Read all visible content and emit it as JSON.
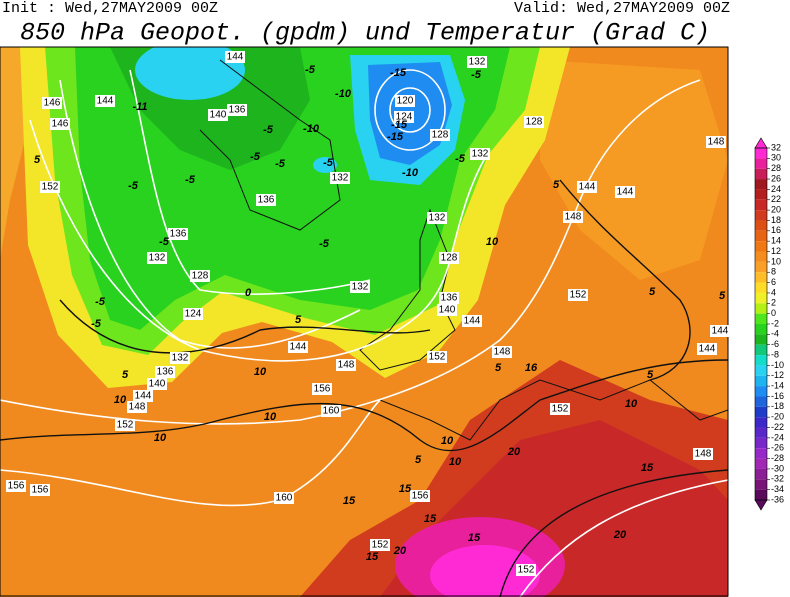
{
  "header": {
    "init": "Init : Wed,27MAY2009 00Z",
    "valid": "Valid: Wed,27MAY2009 00Z",
    "title": "850 hPa Geopot. (gpdm) und Temperatur (Grad C)"
  },
  "colorbar": {
    "ticks": [
      32,
      30,
      28,
      26,
      24,
      22,
      20,
      18,
      16,
      14,
      12,
      10,
      8,
      6,
      4,
      2,
      0,
      -2,
      -4,
      -6,
      -8,
      -10,
      -12,
      -14,
      -16,
      -18,
      -20,
      -22,
      -24,
      -26,
      -28,
      -30,
      -32,
      -34,
      -36
    ],
    "colors": [
      "#ff2ad4",
      "#e8209c",
      "#c81e5a",
      "#a01820",
      "#b41e1e",
      "#c82828",
      "#d23c1e",
      "#dc5014",
      "#e66414",
      "#f07814",
      "#f58c1e",
      "#faa028",
      "#ffbe28",
      "#ffdc28",
      "#f0f028",
      "#b4f014",
      "#50e61e",
      "#28d21e",
      "#1eb41e",
      "#14c87a",
      "#14dcc8",
      "#28d2f0",
      "#1eb4f0",
      "#1e8cf0",
      "#1e64dc",
      "#1e3cc8",
      "#3c28c8",
      "#5a28c8",
      "#7828c8",
      "#9628c8",
      "#a028b4",
      "#8c1e96",
      "#781478",
      "#5a0a5a"
    ]
  },
  "geopotential_labels": [
    144,
    146,
    146,
    152,
    144,
    140,
    136,
    136,
    136,
    132,
    128,
    124,
    132,
    136,
    140,
    144,
    148,
    152,
    156,
    156,
    160,
    160,
    156,
    148,
    144,
    132,
    132,
    128,
    132,
    136,
    140,
    144,
    152,
    148,
    120,
    124,
    128,
    132,
    132,
    128,
    144,
    144,
    148,
    152,
    148,
    144,
    144,
    152,
    148,
    156,
    152,
    152
  ],
  "temperature_labels": [
    -5,
    -5,
    -11,
    -5,
    -5,
    -5,
    -5,
    -10,
    -5,
    -5,
    -5,
    -10,
    -15,
    -15,
    -15,
    -10,
    -5,
    -5,
    -5,
    -5,
    0,
    5,
    5,
    10,
    10,
    10,
    10,
    10,
    5,
    10,
    15,
    15,
    20,
    15,
    20,
    15,
    20,
    10,
    5,
    5,
    16,
    5,
    5,
    10,
    15,
    5,
    15,
    5
  ]
}
